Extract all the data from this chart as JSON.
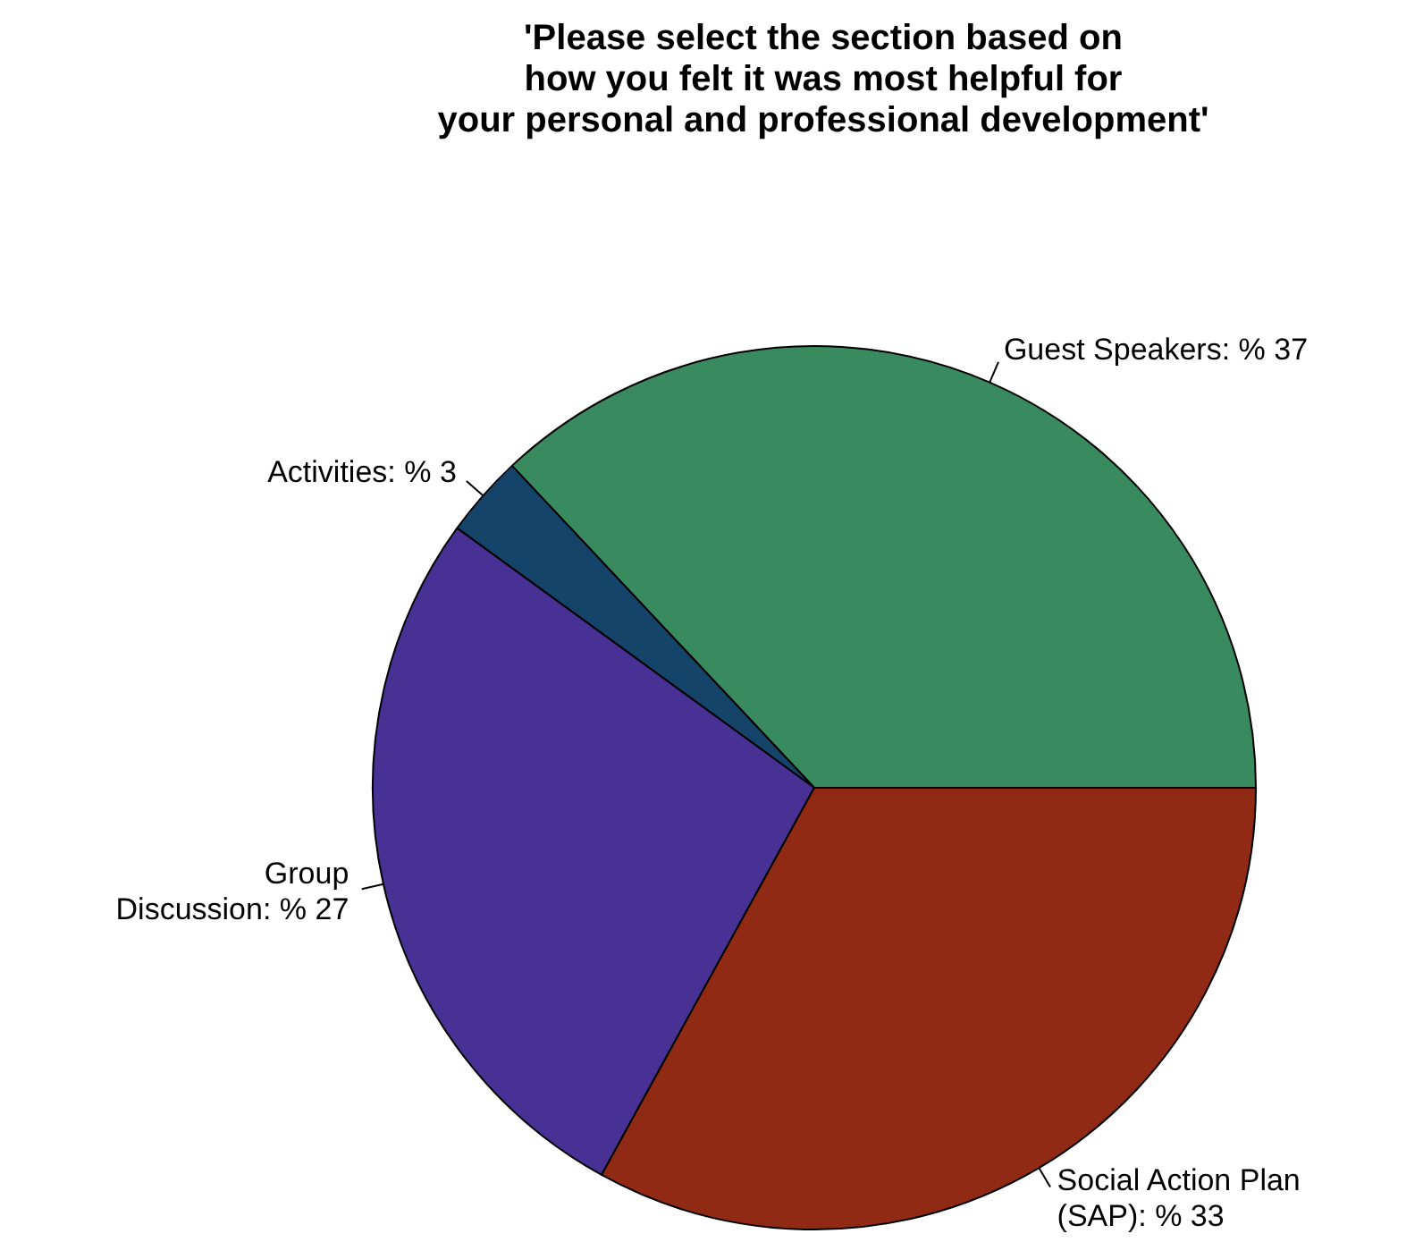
{
  "chart_data": {
    "type": "pie",
    "title": "'Please select the section based on\nhow you felt it was most helpful for\nyour personal and professional development'",
    "categories": [
      "Guest Speakers",
      "Activities",
      "Group\nDiscussion",
      "Social Action Plan\n(SAP)"
    ],
    "values": [
      37,
      3,
      27,
      33
    ],
    "value_labels": [
      "% 37",
      "% 3",
      "% 27",
      "% 33"
    ],
    "colors": [
      "#3a8a5f",
      "#15446b",
      "#473195",
      "#912a14"
    ]
  }
}
